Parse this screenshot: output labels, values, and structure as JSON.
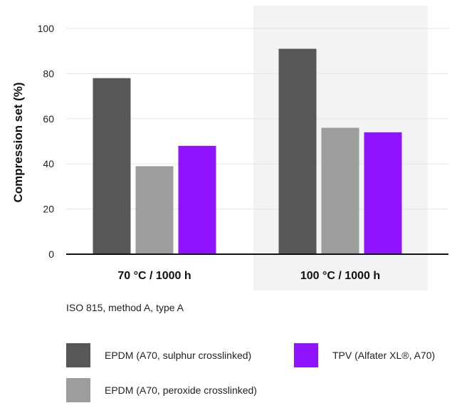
{
  "chart_data": {
    "type": "bar",
    "ylabel": "Compression set (%)",
    "ylim": [
      0,
      100
    ],
    "yticks": [
      0,
      20,
      40,
      60,
      80,
      100
    ],
    "categories": [
      "70 °C / 1000 h",
      "100 °C / 1000 h"
    ],
    "highlighted_category": "100 °C / 1000 h",
    "grid": true,
    "series": [
      {
        "name": "EPDM (A70, sulphur crosslinked)",
        "color": "#575756",
        "values": [
          78,
          91
        ]
      },
      {
        "name": "EPDM (A70, peroxide crosslinked)",
        "color": "#9d9d9c",
        "values": [
          39,
          56
        ]
      },
      {
        "name": "TPV (Alfater XL®, A70)",
        "color": "#9013fe",
        "values": [
          48,
          54
        ]
      }
    ],
    "legend_position": "bottom"
  },
  "note": "ISO 815, method A, type A"
}
